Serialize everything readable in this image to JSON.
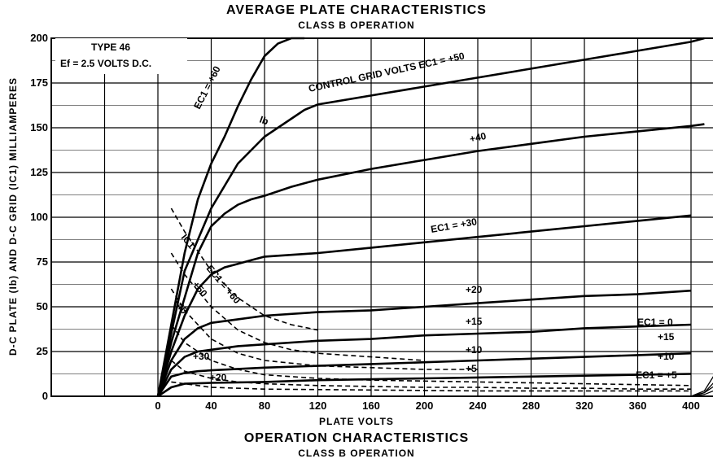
{
  "title": "AVERAGE PLATE CHARACTERISTICS",
  "subtitle": "CLASS B OPERATION",
  "footer_title": "OPERATION CHARACTERISTICS",
  "footer_subtitle": "CLASS B OPERATION",
  "chart_data": {
    "type": "line",
    "xlabel": "PLATE VOLTS",
    "ylabel": "D-C PLATE (Ib) AND D-C GRID (IC1) MILLIAMPERES",
    "xlim": [
      0,
      480
    ],
    "ylim": [
      0,
      200
    ],
    "x_ticks": [
      0,
      40,
      80,
      120,
      160,
      200,
      240,
      280,
      320,
      360,
      400,
      440,
      480
    ],
    "y_ticks": [
      0,
      25,
      50,
      75,
      100,
      125,
      150,
      175,
      200
    ],
    "grid": true,
    "info_box": [
      "TYPE 46",
      "Ef = 2.5 VOLTS D.C."
    ],
    "curve_labels": {
      "c60": "EC1 = +60",
      "c50": "CONTROL GRID VOLTS  EC1 = +50",
      "c40": "+40",
      "c30": "EC1 = +30",
      "c20": "+20",
      "c15": "+15",
      "c10": "+10",
      "c5": "+5",
      "ib": "Ib",
      "ic1": "IC1",
      "g60": "EC1 = +60",
      "g50": "+50",
      "g40": "+40",
      "g30": "+30",
      "g20": "+20",
      "r0": "EC1 = 0",
      "r15": "+15",
      "r10": "+10",
      "r5": "EC1 = +5"
    },
    "series": [
      {
        "name": "EC1 = +60",
        "kind": "plate",
        "x": [
          0,
          10,
          20,
          30,
          40,
          50,
          60,
          70,
          80,
          90,
          100,
          110
        ],
        "y": [
          0,
          40,
          80,
          110,
          130,
          145,
          162,
          177,
          190,
          197,
          200,
          200
        ]
      },
      {
        "name": "EC1 = +50",
        "kind": "plate",
        "x": [
          0,
          10,
          20,
          40,
          60,
          80,
          100,
          110,
          120,
          160,
          200,
          240,
          280,
          320,
          360,
          400,
          410
        ],
        "y": [
          0,
          35,
          70,
          105,
          130,
          145,
          155,
          160,
          163,
          168,
          173,
          178,
          183,
          188,
          193,
          198,
          200
        ]
      },
      {
        "name": "+40",
        "kind": "plate",
        "x": [
          0,
          10,
          20,
          30,
          40,
          50,
          60,
          70,
          80,
          100,
          120,
          160,
          200,
          240,
          280,
          320,
          360,
          400,
          410
        ],
        "y": [
          0,
          30,
          55,
          80,
          95,
          102,
          107,
          110,
          112,
          117,
          121,
          127,
          132,
          137,
          141,
          145,
          148,
          151,
          152
        ]
      },
      {
        "name": "EC1 = +30",
        "kind": "plate",
        "x": [
          0,
          10,
          20,
          30,
          40,
          50,
          60,
          70,
          80,
          120,
          160,
          200,
          240,
          280,
          320,
          360,
          400
        ],
        "y": [
          0,
          25,
          45,
          60,
          68,
          72,
          74,
          76,
          78,
          80,
          83,
          86,
          89,
          92,
          95,
          98,
          101
        ]
      },
      {
        "name": "+20",
        "kind": "plate",
        "x": [
          0,
          10,
          20,
          30,
          40,
          60,
          80,
          120,
          160,
          200,
          240,
          280,
          320,
          360,
          400
        ],
        "y": [
          0,
          20,
          32,
          38,
          41,
          43,
          45,
          47,
          48,
          50,
          52,
          54,
          56,
          57,
          59
        ]
      },
      {
        "name": "+15",
        "kind": "plate",
        "x": [
          0,
          10,
          20,
          30,
          40,
          60,
          80,
          120,
          160,
          200,
          240,
          280,
          320,
          360,
          400
        ],
        "y": [
          0,
          15,
          22,
          25,
          26,
          28,
          29,
          31,
          32,
          34,
          35,
          36,
          38,
          39,
          40
        ]
      },
      {
        "name": "+10",
        "kind": "plate",
        "x": [
          0,
          10,
          20,
          30,
          40,
          80,
          120,
          160,
          200,
          240,
          280,
          320,
          360,
          400
        ],
        "y": [
          0,
          11,
          13,
          14,
          14.5,
          16,
          17,
          18,
          19,
          20,
          21,
          22,
          23,
          24
        ]
      },
      {
        "name": "+5",
        "kind": "plate",
        "x": [
          0,
          10,
          20,
          40,
          80,
          120,
          160,
          200,
          240,
          280,
          320,
          360,
          400
        ],
        "y": [
          0,
          5,
          7,
          7.5,
          8,
          9,
          9.5,
          10,
          10.5,
          11,
          11.5,
          12,
          12.5
        ]
      },
      {
        "name": "IC1 EC1 = +60",
        "kind": "grid",
        "x": [
          10,
          20,
          40,
          60,
          80,
          100,
          120
        ],
        "y": [
          105,
          92,
          70,
          55,
          45,
          40,
          37
        ]
      },
      {
        "name": "IC1 +50",
        "kind": "grid",
        "x": [
          10,
          20,
          40,
          60,
          80,
          100,
          120,
          160,
          200
        ],
        "y": [
          80,
          68,
          50,
          37,
          30,
          26,
          24,
          22,
          20
        ]
      },
      {
        "name": "IC1 +40",
        "kind": "grid",
        "x": [
          10,
          20,
          40,
          60,
          80,
          120,
          160,
          200,
          240
        ],
        "y": [
          60,
          48,
          32,
          24,
          20,
          17,
          16,
          15,
          15
        ]
      },
      {
        "name": "IC1 +30",
        "kind": "grid",
        "x": [
          10,
          20,
          40,
          60,
          80,
          120,
          160,
          200,
          240,
          280,
          320,
          360,
          400
        ],
        "y": [
          40,
          30,
          20,
          15,
          12,
          10,
          9,
          8.5,
          8,
          7.5,
          7,
          6.5,
          6
        ]
      },
      {
        "name": "IC1 +20",
        "kind": "grid",
        "x": [
          10,
          20,
          40,
          60,
          80,
          120,
          160,
          200,
          240,
          280,
          320,
          360,
          400
        ],
        "y": [
          20,
          14,
          10,
          8,
          7,
          6,
          5.5,
          5,
          5,
          4.5,
          4.5,
          4,
          4
        ]
      },
      {
        "name": "IC1 low",
        "kind": "grid",
        "x": [
          10,
          40,
          80,
          160,
          240,
          320,
          400
        ],
        "y": [
          8,
          5,
          4,
          3.5,
          3,
          3,
          3
        ]
      },
      {
        "name": "EC1 = 0 (ext)",
        "kind": "ext",
        "x": [
          400,
          410,
          420,
          430,
          440,
          450
        ],
        "y": [
          0,
          3,
          15,
          30,
          38,
          42
        ]
      },
      {
        "name": "+15 (ext)",
        "kind": "ext",
        "x": [
          400,
          410,
          420,
          430,
          440,
          450
        ],
        "y": [
          0,
          2,
          10,
          22,
          30,
          34
        ]
      },
      {
        "name": "+10 (ext)",
        "kind": "ext",
        "x": [
          400,
          410,
          420,
          430,
          440,
          450
        ],
        "y": [
          0,
          2,
          7,
          15,
          21,
          24
        ]
      },
      {
        "name": "EC1 = +5 (ext)",
        "kind": "ext",
        "x": [
          400,
          410,
          420,
          430,
          440,
          450
        ],
        "y": [
          0,
          1,
          4,
          9,
          13,
          15
        ]
      }
    ]
  }
}
